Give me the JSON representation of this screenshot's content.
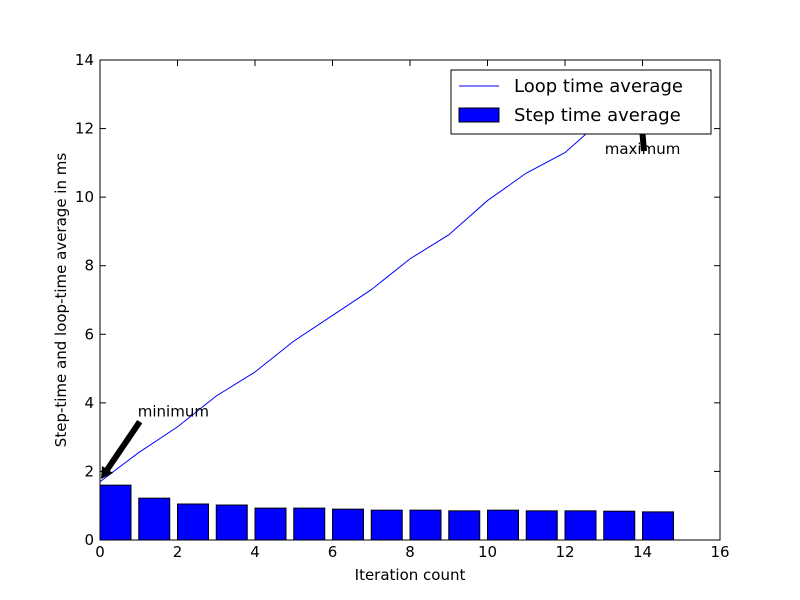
{
  "chart_data": {
    "type": "bar",
    "xlabel": "Iteration count",
    "ylabel": "Step-time and loop-time average in ms",
    "xlim": [
      0,
      16
    ],
    "ylim": [
      0,
      14
    ],
    "xticks": [
      "0",
      "2",
      "4",
      "6",
      "8",
      "10",
      "12",
      "14",
      "16"
    ],
    "yticks": [
      "0",
      "2",
      "4",
      "6",
      "8",
      "10",
      "12",
      "14"
    ],
    "grid": false,
    "legend_position": "top-right",
    "series": [
      {
        "name": "Loop time average",
        "type": "line",
        "color": "#0000ff",
        "x": [
          0,
          1,
          2,
          3,
          4,
          5,
          6,
          7,
          8,
          9,
          10,
          11,
          12,
          13,
          14
        ],
        "values": [
          1.7,
          2.55,
          3.3,
          4.2,
          4.9,
          5.8,
          6.55,
          7.3,
          8.2,
          8.9,
          9.9,
          10.7,
          11.3,
          12.3,
          13.0
        ]
      },
      {
        "name": "Step time average",
        "type": "bar",
        "color": "#0000ff",
        "x": [
          0,
          1,
          2,
          3,
          4,
          5,
          6,
          7,
          8,
          9,
          10,
          11,
          12,
          13,
          14
        ],
        "values": [
          1.6,
          1.22,
          1.05,
          1.02,
          0.93,
          0.93,
          0.9,
          0.87,
          0.87,
          0.85,
          0.87,
          0.85,
          0.85,
          0.84,
          0.82
        ],
        "bar_width": 0.8
      }
    ],
    "annotations": [
      {
        "text": "minimum",
        "point": [
          0,
          1.6
        ],
        "text_at": [
          1,
          3.6
        ]
      },
      {
        "text": "maximum",
        "point": [
          14,
          13.0
        ],
        "text_at": [
          13,
          11.0
        ]
      }
    ]
  }
}
